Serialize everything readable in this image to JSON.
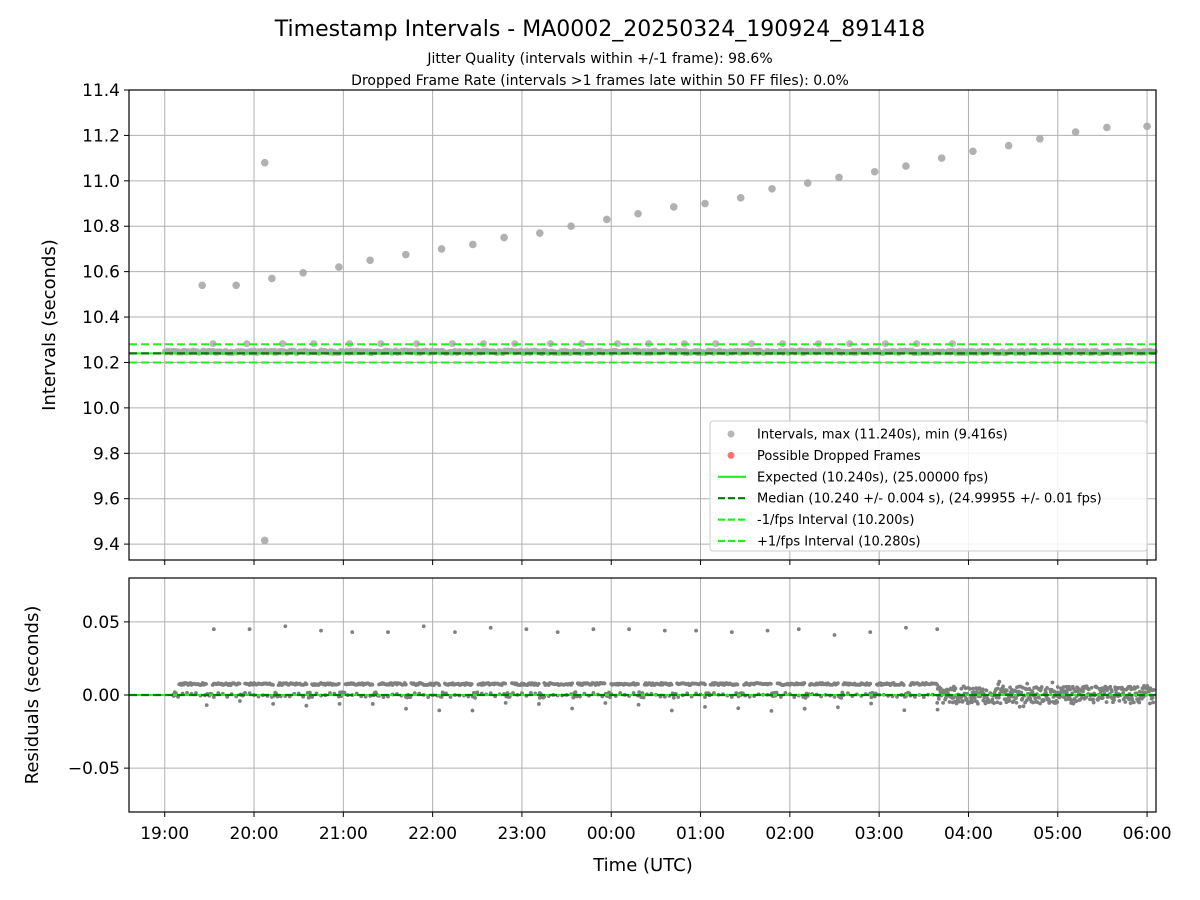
{
  "chart_data": {
    "type": "scatter",
    "title": "Timestamp Intervals - MA0002_20250324_190924_891418",
    "subtitle_lines": [
      "Jitter Quality (intervals within +/-1 frame): 98.6%",
      "Dropped Frame Rate (intervals >1 frames late within 50 FF files): 0.0%"
    ],
    "xlabel": "Time (UTC)",
    "x_tick_labels": [
      "19:00",
      "20:00",
      "21:00",
      "22:00",
      "23:00",
      "00:00",
      "01:00",
      "02:00",
      "03:00",
      "04:00",
      "05:00",
      "06:00"
    ],
    "x_range_hours": [
      18.6,
      30.1
    ],
    "colors": {
      "intervals": "#a9a9a9",
      "residuals": "#808080",
      "dropped": "#ff5a5a",
      "expected": "#22ee22",
      "median": "#007a00",
      "band": "#22ee22"
    },
    "top": {
      "ylabel": "Intervals (seconds)",
      "ylim": [
        9.33,
        11.4
      ],
      "y_ticks": [
        9.4,
        9.6,
        9.8,
        10.0,
        10.2,
        10.4,
        10.6,
        10.8,
        11.0,
        11.2,
        11.4
      ],
      "y_tick_labels": [
        "9.4",
        "9.6",
        "9.8",
        "10.0",
        "10.2",
        "10.4",
        "10.6",
        "10.8",
        "11.0",
        "11.2",
        "11.4"
      ],
      "expected": 10.24,
      "median": 10.24,
      "lower_band": 10.2,
      "upper_band": 10.28,
      "dense_start": 19.0,
      "dense_end": 30.1,
      "dense_center": 10.247,
      "drift_points": [
        {
          "x": 19.42,
          "y": 10.54
        },
        {
          "x": 19.8,
          "y": 10.54
        },
        {
          "x": 20.2,
          "y": 10.57
        },
        {
          "x": 20.55,
          "y": 10.595
        },
        {
          "x": 20.95,
          "y": 10.62
        },
        {
          "x": 21.3,
          "y": 10.65
        },
        {
          "x": 21.7,
          "y": 10.675
        },
        {
          "x": 22.1,
          "y": 10.7
        },
        {
          "x": 22.45,
          "y": 10.72
        },
        {
          "x": 22.8,
          "y": 10.75
        },
        {
          "x": 23.2,
          "y": 10.77
        },
        {
          "x": 23.55,
          "y": 10.8
        },
        {
          "x": 23.95,
          "y": 10.83
        },
        {
          "x": 24.3,
          "y": 10.855
        },
        {
          "x": 24.7,
          "y": 10.885
        },
        {
          "x": 25.05,
          "y": 10.9
        },
        {
          "x": 25.45,
          "y": 10.925
        },
        {
          "x": 25.8,
          "y": 10.965
        },
        {
          "x": 26.2,
          "y": 10.99
        },
        {
          "x": 26.55,
          "y": 11.015
        },
        {
          "x": 26.95,
          "y": 11.04
        },
        {
          "x": 27.3,
          "y": 11.065
        },
        {
          "x": 27.7,
          "y": 11.1
        },
        {
          "x": 28.05,
          "y": 11.13
        },
        {
          "x": 28.45,
          "y": 11.155
        },
        {
          "x": 28.8,
          "y": 11.185
        },
        {
          "x": 29.2,
          "y": 11.215
        },
        {
          "x": 29.55,
          "y": 11.235
        },
        {
          "x": 30.0,
          "y": 11.24
        }
      ],
      "outliers": [
        {
          "x": 20.12,
          "y": 11.08
        },
        {
          "x": 20.12,
          "y": 9.416
        }
      ],
      "legend": [
        {
          "kind": "marker",
          "color_key": "intervals",
          "label": "Intervals, max (11.240s), min (9.416s)"
        },
        {
          "kind": "marker",
          "color_key": "dropped",
          "label": "Possible Dropped Frames"
        },
        {
          "kind": "solid",
          "color_key": "expected",
          "label": "Expected (10.240s), (25.00000 fps)"
        },
        {
          "kind": "dashed",
          "color_key": "median",
          "label": "Median (10.240 +/- 0.004 s), (24.99955 +/- 0.01 fps)"
        },
        {
          "kind": "dashed",
          "color_key": "band",
          "label": "-1/fps Interval (10.200s)"
        },
        {
          "kind": "dashed",
          "color_key": "band",
          "label": "+1/fps Interval (10.280s)"
        }
      ],
      "legend_position": "lower-right"
    },
    "bottom": {
      "ylabel": "Residuals (seconds)",
      "ylim": [
        -0.08,
        0.08
      ],
      "y_ticks": [
        -0.05,
        0.0,
        0.05
      ],
      "y_tick_labels": [
        "−0.05",
        "0.00",
        "0.05"
      ],
      "high_residuals": [
        {
          "x": 19.55,
          "y": 0.045
        },
        {
          "x": 19.95,
          "y": 0.045
        },
        {
          "x": 20.35,
          "y": 0.047
        },
        {
          "x": 20.75,
          "y": 0.044
        },
        {
          "x": 21.1,
          "y": 0.043
        },
        {
          "x": 21.5,
          "y": 0.043
        },
        {
          "x": 21.9,
          "y": 0.047
        },
        {
          "x": 22.25,
          "y": 0.043
        },
        {
          "x": 22.65,
          "y": 0.046
        },
        {
          "x": 23.05,
          "y": 0.045
        },
        {
          "x": 23.4,
          "y": 0.043
        },
        {
          "x": 23.8,
          "y": 0.045
        },
        {
          "x": 24.2,
          "y": 0.045
        },
        {
          "x": 24.6,
          "y": 0.044
        },
        {
          "x": 24.95,
          "y": 0.044
        },
        {
          "x": 25.35,
          "y": 0.043
        },
        {
          "x": 25.75,
          "y": 0.044
        },
        {
          "x": 26.1,
          "y": 0.045
        },
        {
          "x": 26.5,
          "y": 0.041
        },
        {
          "x": 26.9,
          "y": 0.043
        },
        {
          "x": 27.3,
          "y": 0.046
        },
        {
          "x": 27.65,
          "y": 0.045
        }
      ],
      "stepped_region_end": 27.65,
      "noisy_region_start": 27.65
    }
  }
}
